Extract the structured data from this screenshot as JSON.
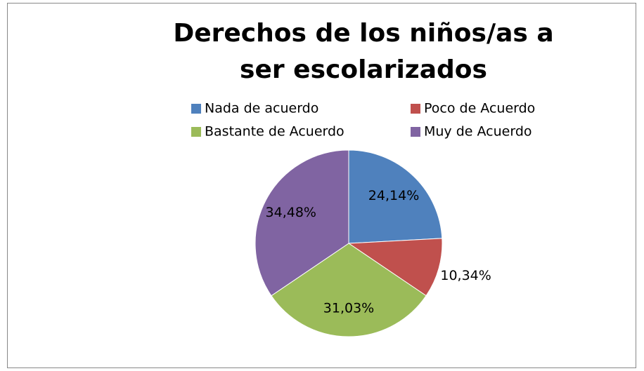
{
  "chart_data": {
    "type": "pie",
    "title": "Derechos de los niños/as a ser escolarizados",
    "categories": [
      "Nada de acuerdo",
      "Poco de Acuerdo",
      "Bastante de Acuerdo",
      "Muy de Acuerdo"
    ],
    "values": [
      24.14,
      10.34,
      31.03,
      34.48
    ],
    "value_labels": [
      "24,14%",
      "10,34%",
      "31,03%",
      "34,48%"
    ],
    "colors": [
      "#4f81bd",
      "#c0504d",
      "#9bbb59",
      "#8064a2"
    ],
    "legend": "top"
  }
}
